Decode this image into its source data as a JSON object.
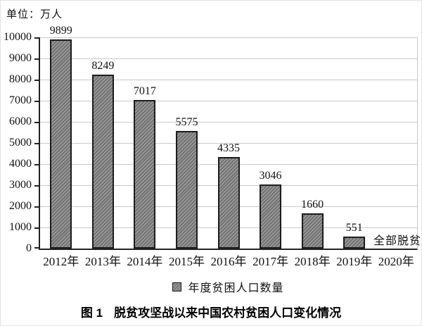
{
  "unit_label": "单位：万人",
  "chart_data": {
    "type": "bar",
    "title": "脱贫攻坚战以来中国农村贫困人口变化情况",
    "categories": [
      "2012年",
      "2013年",
      "2014年",
      "2015年",
      "2016年",
      "2017年",
      "2018年",
      "2019年",
      "2020年"
    ],
    "values": [
      9899,
      8249,
      7017,
      5575,
      4335,
      3046,
      1660,
      551,
      0
    ],
    "value_labels": [
      "9899",
      "8249",
      "7017",
      "5575",
      "4335",
      "3046",
      "1660",
      "551",
      ""
    ],
    "annotation_2020": "全部脱贫",
    "unit": "万人",
    "xlabel": "",
    "ylabel": "",
    "ylim": [
      0,
      10000
    ],
    "ytick_step": 1000,
    "ytick_labels": [
      "0",
      "1000",
      "2000",
      "3000",
      "4000",
      "5000",
      "6000",
      "7000",
      "8000",
      "9000",
      "10000"
    ],
    "grid": true,
    "legend": [
      "年度贫困人口数量"
    ],
    "legend_position": "bottom",
    "colors": {
      "bar_fill": "#767676",
      "bar_hatch": "#a6a6a6",
      "bar_border": "#1c1c1c",
      "grid": "#c9c9c9",
      "axis": "#222222",
      "text": "#111111"
    }
  },
  "legend": {
    "label": "年度贫困人口数量"
  },
  "caption": {
    "prefix": "图 1",
    "text": "脱贫攻坚战以来中国农村贫困人口变化情况"
  }
}
